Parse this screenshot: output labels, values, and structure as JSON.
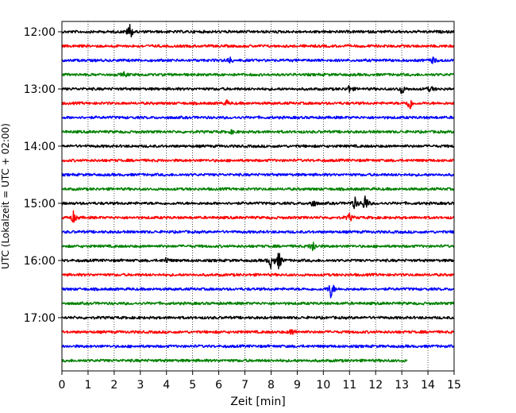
{
  "chart_data": {
    "type": "line",
    "title": "",
    "xlabel": "Zeit  [min]",
    "ylabel": "UTC (Lokalzeit = UTC + 02:00)",
    "xlim": [
      0,
      15
    ],
    "x_ticks": [
      "0",
      "1",
      "2",
      "3",
      "4",
      "5",
      "6",
      "7",
      "8",
      "9",
      "10",
      "11",
      "12",
      "13",
      "14",
      "15"
    ],
    "y_ticks": [
      {
        "row": 0,
        "label": "12:00"
      },
      {
        "row": 4,
        "label": "13:00"
      },
      {
        "row": 8,
        "label": "14:00"
      },
      {
        "row": 12,
        "label": "15:00"
      },
      {
        "row": 16,
        "label": "16:00"
      },
      {
        "row": 20,
        "label": "17:00"
      }
    ],
    "row_count": 24,
    "row_minutes": 15,
    "row_colors": [
      "#000000",
      "#ff0000",
      "#0000ff",
      "#008000"
    ],
    "vertical_grid": "dotted",
    "last_row_end_min": 13.2,
    "events": [
      {
        "row": 0,
        "min": 2.6,
        "amplitude": 11
      },
      {
        "row": 2,
        "min": 6.4,
        "amplitude": 5
      },
      {
        "row": 2,
        "min": 14.2,
        "amplitude": 4
      },
      {
        "row": 3,
        "min": 2.4,
        "amplitude": 3
      },
      {
        "row": 4,
        "min": 11.0,
        "amplitude": 5
      },
      {
        "row": 4,
        "min": 13.0,
        "amplitude": 7
      },
      {
        "row": 4,
        "min": 14.1,
        "amplitude": 4
      },
      {
        "row": 5,
        "min": 6.3,
        "amplitude": 3
      },
      {
        "row": 5,
        "min": 13.3,
        "amplitude": 10
      },
      {
        "row": 7,
        "min": 6.5,
        "amplitude": 2
      },
      {
        "row": 12,
        "min": 9.6,
        "amplitude": 6
      },
      {
        "row": 12,
        "min": 11.2,
        "amplitude": 8
      },
      {
        "row": 12,
        "min": 11.6,
        "amplitude": 12
      },
      {
        "row": 13,
        "min": 0.45,
        "amplitude": 8
      },
      {
        "row": 13,
        "min": 11.0,
        "amplitude": 5
      },
      {
        "row": 15,
        "min": 9.6,
        "amplitude": 9
      },
      {
        "row": 16,
        "min": 4.0,
        "amplitude": 4
      },
      {
        "row": 16,
        "min": 8.0,
        "amplitude": 10
      },
      {
        "row": 16,
        "min": 8.3,
        "amplitude": 12
      },
      {
        "row": 18,
        "min": 10.3,
        "amplitude": 13
      },
      {
        "row": 21,
        "min": 8.8,
        "amplitude": 5
      }
    ]
  }
}
